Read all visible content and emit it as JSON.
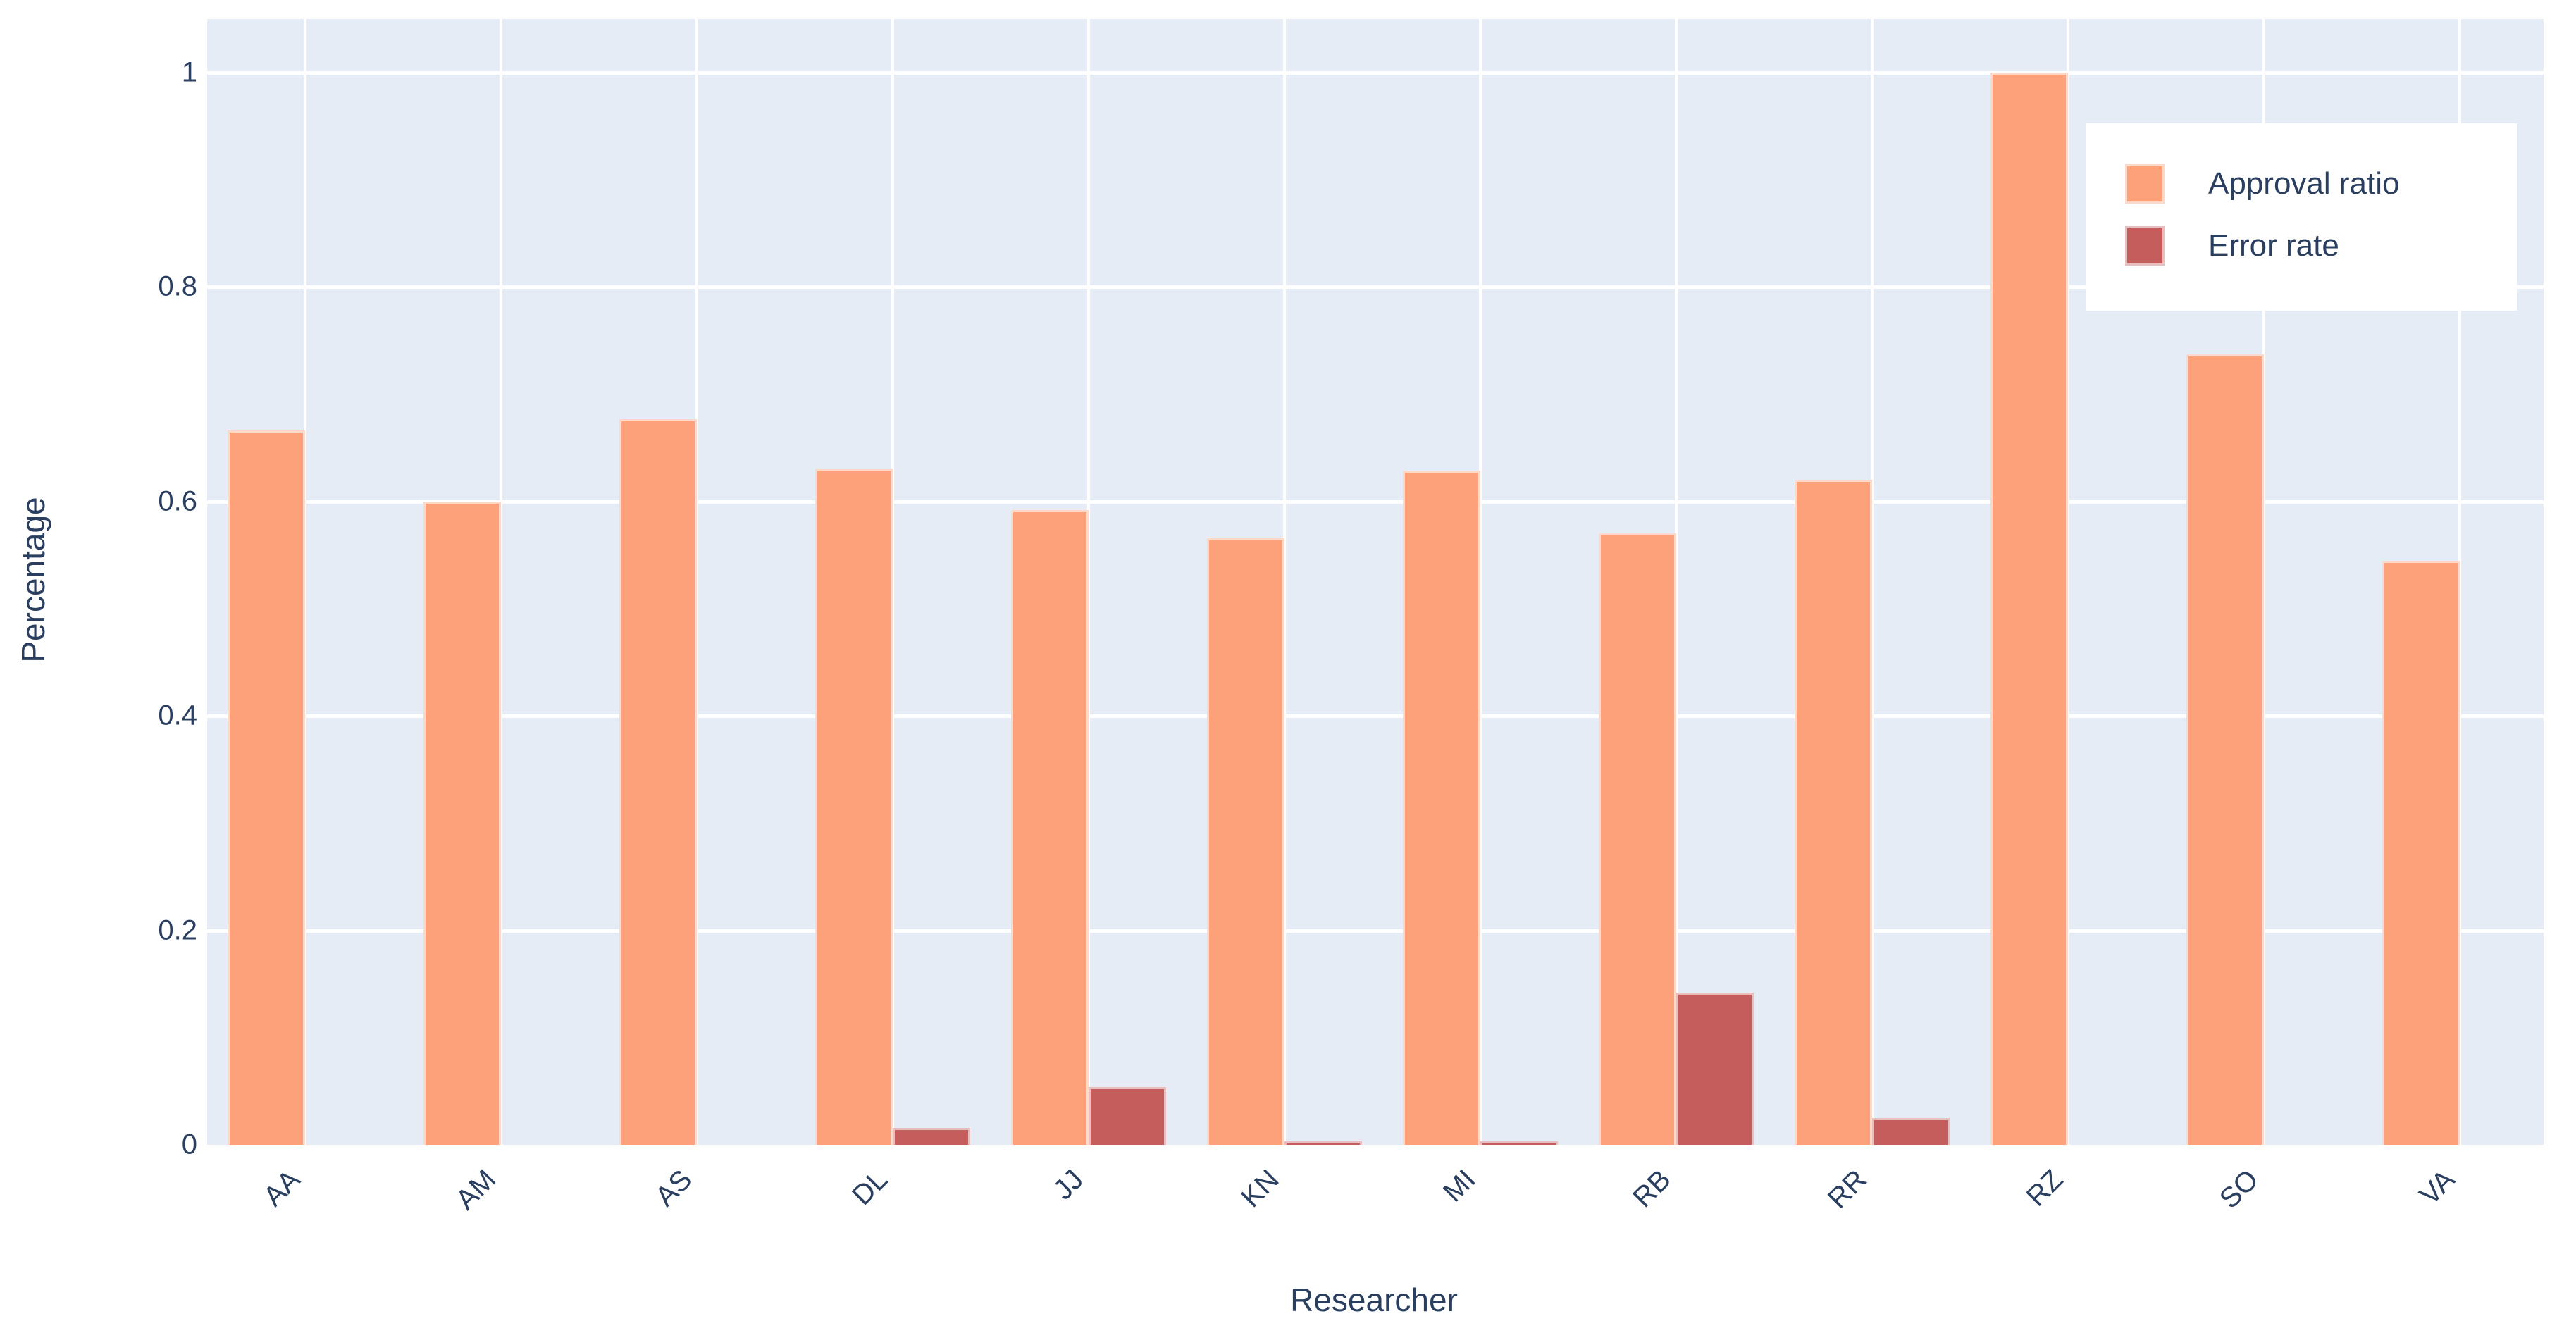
{
  "chart_data": {
    "type": "bar",
    "title": "",
    "xlabel": "Researcher",
    "ylabel": "Percentage",
    "categories": [
      "AA",
      "AM",
      "AS",
      "DL",
      "JJ",
      "KN",
      "MI",
      "RB",
      "RR",
      "RZ",
      "SO",
      "VA"
    ],
    "series": [
      {
        "name": "Approval ratio",
        "color": "#FCA17A",
        "values": [
          0.666,
          0.6,
          0.677,
          0.631,
          0.592,
          0.566,
          0.629,
          0.57,
          0.62,
          1.0,
          0.737,
          0.545
        ]
      },
      {
        "name": "Error rate",
        "color": "#C65D5D",
        "values": [
          0,
          0,
          0,
          0.016,
          0.054,
          0.003,
          0.003,
          0.142,
          0.025,
          0,
          0,
          0
        ]
      }
    ],
    "ylim": [
      0,
      1.05
    ],
    "yticks": [
      0,
      0.2,
      0.4,
      0.6,
      0.8,
      1
    ],
    "ytick_labels": [
      "0",
      "0.2",
      "0.4",
      "0.6",
      "0.8",
      "1"
    ],
    "grid": true,
    "legend_position": "top-right",
    "plot_bg_color": "#E5ECF6",
    "grid_color": "#FFFFFF",
    "text_color": "#2a3f5f",
    "page_bg_color": "#FFFFFF"
  }
}
